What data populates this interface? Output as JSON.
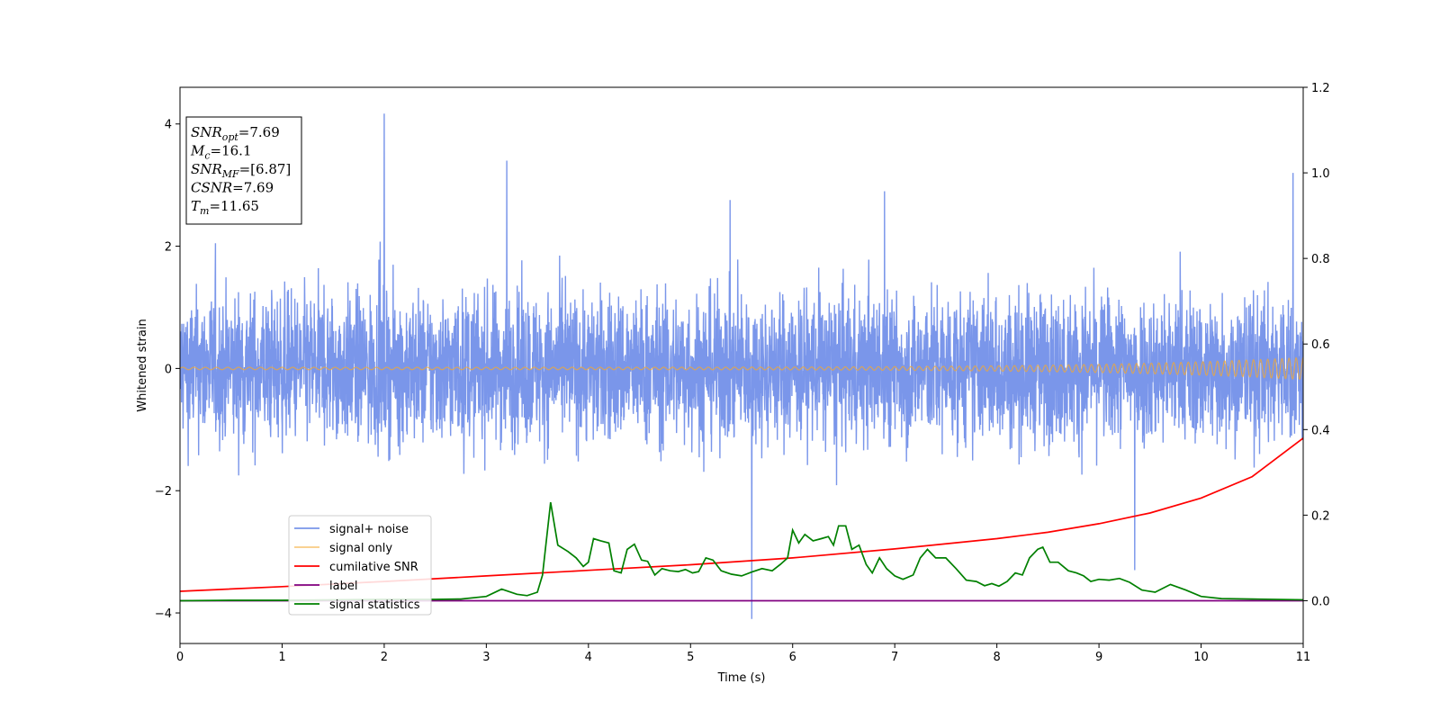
{
  "chart_data": {
    "type": "line",
    "title": "",
    "xlabel": "Time (s)",
    "ylabel": "Whitened strain",
    "xlim": [
      0,
      11
    ],
    "ylim": [
      -4.5,
      4.6
    ],
    "y2lim": [
      -0.1,
      1.2
    ],
    "grid": false,
    "legend_position": "lower-left",
    "x_ticks": [
      "0",
      "1",
      "2",
      "3",
      "4",
      "5",
      "6",
      "7",
      "8",
      "9",
      "10",
      "11"
    ],
    "y_ticks": [
      "−4",
      "−2",
      "0",
      "2",
      "4"
    ],
    "y2_ticks": [
      "0.0",
      "0.2",
      "0.4",
      "0.6",
      "0.8",
      "1.0",
      "1.2"
    ],
    "info_box": [
      {
        "main": "SNR",
        "sub": "opt",
        "rest": "=7.69"
      },
      {
        "main": "M",
        "sub": "c",
        "rest": "=16.1"
      },
      {
        "main": "SNR",
        "sub": "MF",
        "rest": "=[6.87]"
      },
      {
        "main": "CSNR",
        "sub": "",
        "rest": "=7.69"
      },
      {
        "main": "T",
        "sub": "m",
        "rest": "=11.65"
      }
    ],
    "series": [
      {
        "name": "signal+ noise",
        "color": "#4169e1",
        "axis": "left",
        "kind": "noise",
        "typical_band": [
          -1.8,
          1.8
        ],
        "peaks": [
          [
            2.0,
            4.17
          ],
          [
            3.2,
            3.4
          ],
          [
            5.6,
            -4.1
          ],
          [
            6.9,
            2.9
          ],
          [
            9.35,
            -3.3
          ],
          [
            10.9,
            3.2
          ]
        ]
      },
      {
        "name": "signal only",
        "color": "#f4a830",
        "axis": "left",
        "kind": "chirp",
        "amplitude_start": 0.02,
        "amplitude_end": 0.18
      },
      {
        "name": "cumilative SNR",
        "color": "#ff0000",
        "axis": "right",
        "x": [
          0,
          1,
          2,
          3,
          4,
          5,
          6,
          7,
          8,
          8.5,
          9,
          9.5,
          10,
          10.5,
          11
        ],
        "y": [
          0.022,
          0.033,
          0.045,
          0.058,
          0.071,
          0.084,
          0.1,
          0.121,
          0.145,
          0.16,
          0.18,
          0.205,
          0.24,
          0.29,
          0.38
        ]
      },
      {
        "name": "label",
        "color": "#800080",
        "axis": "right",
        "x": [
          0,
          11
        ],
        "y": [
          0.0,
          0.0
        ]
      },
      {
        "name": "signal statistics",
        "color": "#008000",
        "axis": "right",
        "x": [
          0,
          0.5,
          1.0,
          1.5,
          2.0,
          2.5,
          2.75,
          3.0,
          3.15,
          3.3,
          3.4,
          3.5,
          3.55,
          3.63,
          3.7,
          3.8,
          3.88,
          3.95,
          4.0,
          4.05,
          4.12,
          4.2,
          4.25,
          4.32,
          4.38,
          4.45,
          4.52,
          4.58,
          4.65,
          4.72,
          4.8,
          4.88,
          4.95,
          5.02,
          5.08,
          5.15,
          5.22,
          5.3,
          5.4,
          5.5,
          5.6,
          5.7,
          5.8,
          5.88,
          5.95,
          6.0,
          6.06,
          6.12,
          6.2,
          6.28,
          6.35,
          6.4,
          6.45,
          6.52,
          6.58,
          6.65,
          6.72,
          6.78,
          6.85,
          6.92,
          7.0,
          7.08,
          7.18,
          7.25,
          7.32,
          7.4,
          7.5,
          7.6,
          7.7,
          7.8,
          7.88,
          7.95,
          8.02,
          8.1,
          8.18,
          8.25,
          8.32,
          8.4,
          8.45,
          8.52,
          8.6,
          8.7,
          8.78,
          8.85,
          8.92,
          9.0,
          9.1,
          9.2,
          9.3,
          9.42,
          9.55,
          9.7,
          9.85,
          10.0,
          10.2,
          10.5,
          11.0
        ],
        "y": [
          0.0,
          0.001,
          0.001,
          0.002,
          0.003,
          0.003,
          0.004,
          0.01,
          0.027,
          0.015,
          0.012,
          0.02,
          0.06,
          0.23,
          0.13,
          0.115,
          0.1,
          0.08,
          0.09,
          0.145,
          0.14,
          0.135,
          0.07,
          0.065,
          0.12,
          0.132,
          0.095,
          0.092,
          0.06,
          0.075,
          0.07,
          0.068,
          0.073,
          0.065,
          0.068,
          0.1,
          0.095,
          0.07,
          0.062,
          0.058,
          0.067,
          0.075,
          0.07,
          0.085,
          0.1,
          0.165,
          0.135,
          0.155,
          0.14,
          0.145,
          0.15,
          0.13,
          0.175,
          0.175,
          0.12,
          0.13,
          0.085,
          0.065,
          0.1,
          0.075,
          0.058,
          0.05,
          0.06,
          0.1,
          0.12,
          0.1,
          0.1,
          0.075,
          0.048,
          0.045,
          0.035,
          0.04,
          0.034,
          0.045,
          0.065,
          0.06,
          0.1,
          0.12,
          0.125,
          0.09,
          0.09,
          0.07,
          0.065,
          0.058,
          0.045,
          0.05,
          0.048,
          0.052,
          0.043,
          0.025,
          0.02,
          0.038,
          0.025,
          0.01,
          0.005,
          0.004,
          0.002
        ]
      }
    ]
  }
}
